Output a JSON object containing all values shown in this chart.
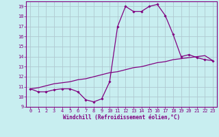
{
  "xlabel": "Windchill (Refroidissement éolien,°C)",
  "background_color": "#c8eef0",
  "line_color": "#800080",
  "grid_color": "#b0c8d0",
  "hours": [
    0,
    1,
    2,
    3,
    4,
    5,
    6,
    7,
    8,
    9,
    10,
    11,
    12,
    13,
    14,
    15,
    16,
    17,
    18,
    19,
    20,
    21,
    22,
    23
  ],
  "windchill": [
    10.8,
    10.5,
    10.5,
    10.7,
    10.8,
    10.8,
    10.5,
    9.7,
    9.5,
    9.8,
    11.5,
    17.0,
    19.0,
    18.5,
    18.5,
    19.0,
    19.2,
    18.1,
    16.2,
    14.0,
    14.2,
    13.9,
    13.7,
    13.6
  ],
  "temp": [
    10.8,
    10.9,
    11.1,
    11.3,
    11.4,
    11.5,
    11.7,
    11.8,
    12.0,
    12.2,
    12.4,
    12.5,
    12.7,
    12.9,
    13.0,
    13.2,
    13.4,
    13.5,
    13.7,
    13.8,
    13.9,
    14.0,
    14.1,
    13.6
  ],
  "ylim": [
    9,
    19.5
  ],
  "xlim": [
    -0.5,
    23.5
  ],
  "yticks": [
    9,
    10,
    11,
    12,
    13,
    14,
    15,
    16,
    17,
    18,
    19
  ],
  "xticks": [
    0,
    1,
    2,
    3,
    4,
    5,
    6,
    7,
    8,
    9,
    10,
    11,
    12,
    13,
    14,
    15,
    16,
    17,
    18,
    19,
    20,
    21,
    22,
    23
  ],
  "tick_fontsize": 5,
  "xlabel_fontsize": 5.5
}
